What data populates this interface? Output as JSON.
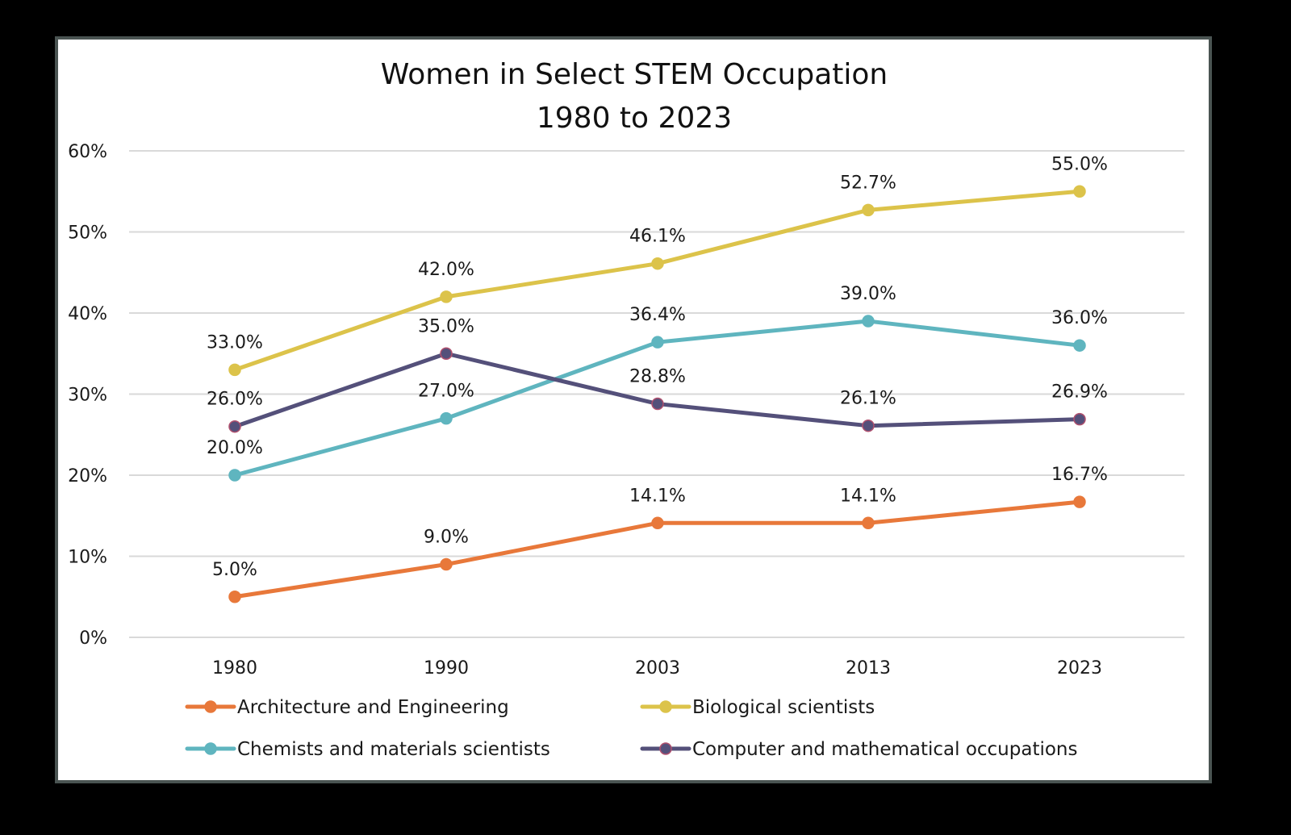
{
  "chart_data": {
    "type": "line",
    "title": "Women in Select STEM Occupation",
    "subtitle": "1980 to 2023",
    "xlabel": "",
    "ylabel": "",
    "categories": [
      "1980",
      "1990",
      "2003",
      "2013",
      "2023"
    ],
    "ylim": [
      0,
      60
    ],
    "yticks": [
      0,
      10,
      20,
      30,
      40,
      50,
      60
    ],
    "ytick_labels": [
      "0%",
      "10%",
      "20%",
      "30%",
      "40%",
      "50%",
      "60%"
    ],
    "grid": true,
    "legend_position": "bottom",
    "series": [
      {
        "name": "Architecture and Engineering",
        "color": "#e8783a",
        "marker_edge": "#e8783a",
        "values": [
          5.0,
          9.0,
          14.1,
          14.1,
          16.7
        ],
        "labels": [
          "5.0%",
          "9.0%",
          "14.1%",
          "14.1%",
          "16.7%"
        ]
      },
      {
        "name": "Biological scientists",
        "color": "#dcc34a",
        "marker_edge": "#dcc34a",
        "values": [
          33.0,
          42.0,
          46.1,
          52.7,
          55.0
        ],
        "labels": [
          "33.0%",
          "42.0%",
          "46.1%",
          "52.7%",
          "55.0%"
        ]
      },
      {
        "name": "Chemists and materials scientists",
        "color": "#5fb5bf",
        "marker_edge": "#5fb5bf",
        "values": [
          20.0,
          27.0,
          36.4,
          39.0,
          36.0
        ],
        "labels": [
          "20.0%",
          "27.0%",
          "36.4%",
          "39.0%",
          "36.0%"
        ]
      },
      {
        "name": "Computer and mathematical occupations",
        "color": "#54507a",
        "marker_edge": "#b0506e",
        "values": [
          26.0,
          35.0,
          28.8,
          26.1,
          26.9
        ],
        "labels": [
          "26.0%",
          "35.0%",
          "28.8%",
          "26.1%",
          "26.9%"
        ]
      }
    ]
  }
}
